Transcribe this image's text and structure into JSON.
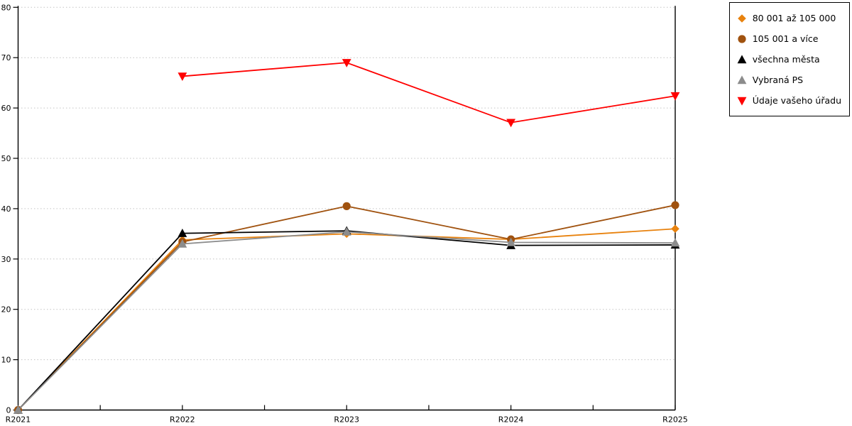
{
  "chart_data": {
    "type": "line",
    "title": "",
    "xlabel": "",
    "ylabel": "",
    "categories": [
      "R2021",
      "R2022",
      "R2023",
      "R2024",
      "R2025"
    ],
    "series": [
      {
        "name": "80 001 až 105 000",
        "color": "#E8820E",
        "marker": "diamond",
        "values": [
          0,
          33.8,
          35.0,
          33.9,
          36.0
        ]
      },
      {
        "name": "105 001 a více",
        "color": "#A0520F",
        "marker": "circle",
        "values": [
          0,
          33.4,
          40.5,
          33.9,
          40.7
        ]
      },
      {
        "name": "všechna města",
        "color": "#000000",
        "marker": "triangle-up",
        "values": [
          0,
          35.1,
          35.6,
          32.7,
          32.8
        ]
      },
      {
        "name": "Vybraná PS",
        "color": "#8C8C8C",
        "marker": "triangle-up",
        "values": [
          0,
          33.0,
          35.4,
          33.3,
          33.2
        ]
      },
      {
        "name": "Údaje vašeho úřadu",
        "color": "#FF0000",
        "marker": "triangle-down",
        "values": [
          null,
          66.3,
          69.0,
          57.1,
          62.4
        ]
      }
    ],
    "ylim": [
      0,
      80
    ],
    "yticks": [
      0,
      10,
      20,
      30,
      40,
      50,
      60,
      70,
      80
    ],
    "x_minor_ticks_per_interval": 2,
    "grid": "horizontal-dotted",
    "grid_color": "#C3C3C3",
    "axis_color": "#000000",
    "legend_position": "top-right"
  }
}
